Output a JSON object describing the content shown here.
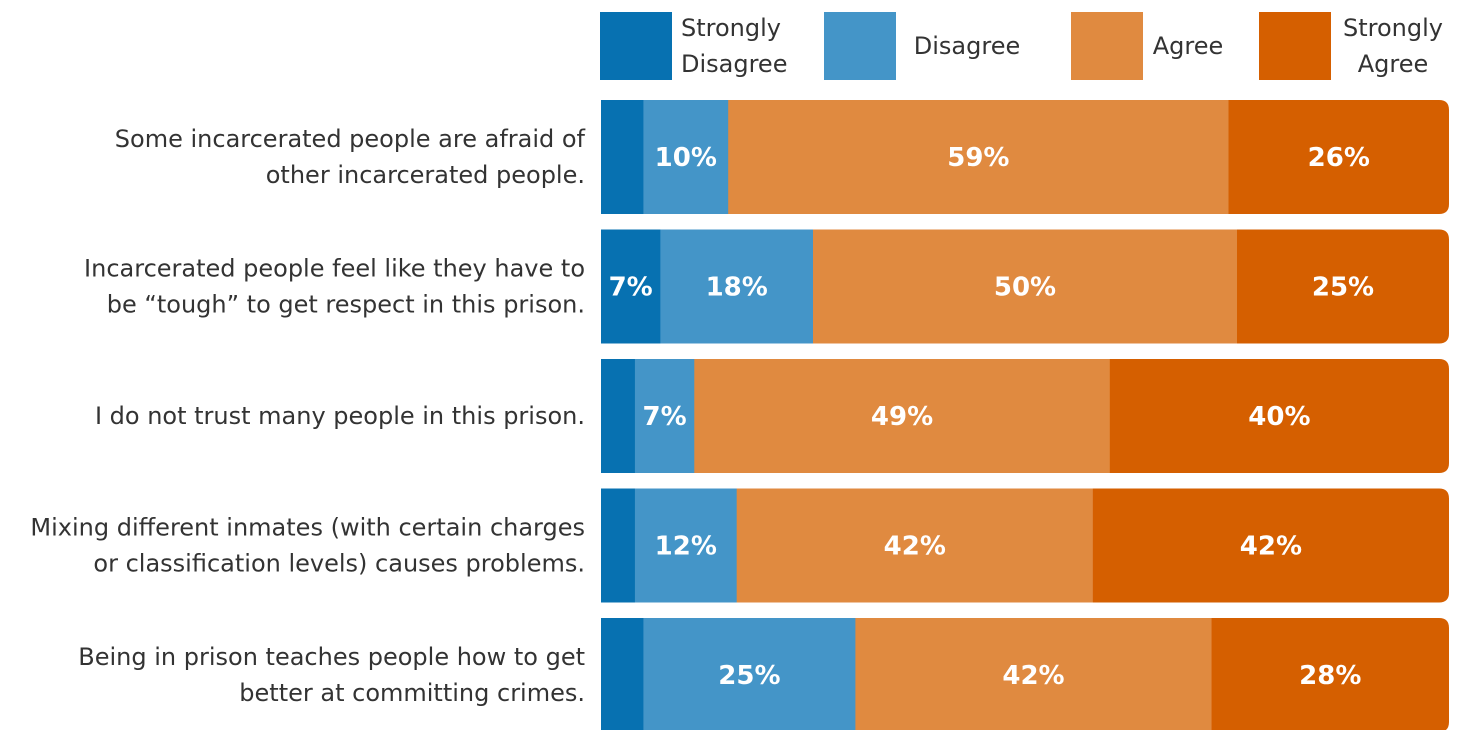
{
  "colors": {
    "strongly_disagree": "#0771b1",
    "disagree": "#4495c8",
    "agree": "#e08a40",
    "strongly_agree": "#d55f00",
    "label_text": "#333333",
    "bar_label_text": "#ffffff"
  },
  "chart_data": {
    "type": "bar",
    "orientation": "horizontal",
    "stacked": true,
    "stack_mode": "percent",
    "grid": false,
    "legend_position": "top",
    "title": "",
    "xlabel": "",
    "ylabel": "",
    "xlim": [
      0,
      100
    ],
    "categories": [
      [
        "Some incarcerated people are afraid of",
        "other incarcerated people."
      ],
      [
        "Incarcerated people feel like they have to",
        "be “tough” to get respect in this prison."
      ],
      [
        "I do not trust many people in this prison."
      ],
      [
        "Mixing different inmates (with certain charges",
        "or classification levels) causes problems."
      ],
      [
        "Being in prison teaches people how to get",
        "better at committing crimes."
      ]
    ],
    "series": [
      {
        "name": "Strongly Disagree",
        "legend_lines": [
          "Strongly",
          "Disagree"
        ],
        "color_key": "strongly_disagree",
        "values": [
          5,
          7,
          4,
          4,
          5
        ],
        "labels": [
          "",
          "7%",
          "",
          "",
          ""
        ]
      },
      {
        "name": "Disagree",
        "legend_lines": [
          "Disagree"
        ],
        "color_key": "disagree",
        "values": [
          10,
          18,
          7,
          12,
          25
        ],
        "labels": [
          "10%",
          "18%",
          "7%",
          "12%",
          "25%"
        ]
      },
      {
        "name": "Agree",
        "legend_lines": [
          "Agree"
        ],
        "color_key": "agree",
        "values": [
          59,
          50,
          49,
          42,
          42
        ],
        "labels": [
          "59%",
          "50%",
          "49%",
          "42%",
          "42%"
        ]
      },
      {
        "name": "Strongly Agree",
        "legend_lines": [
          "Strongly",
          "Agree"
        ],
        "color_key": "strongly_agree",
        "values": [
          26,
          25,
          40,
          42,
          28
        ],
        "labels": [
          "26%",
          "25%",
          "40%",
          "42%",
          "28%"
        ]
      }
    ]
  }
}
